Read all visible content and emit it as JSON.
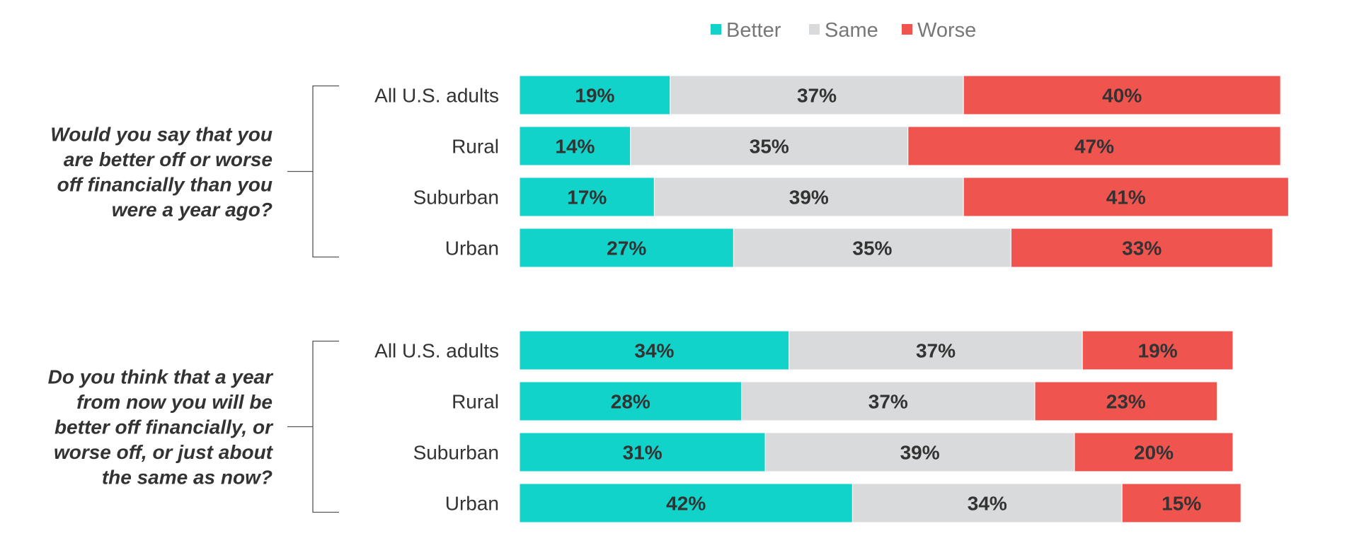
{
  "chart_data": {
    "type": "bar",
    "orientation": "horizontal",
    "stacked": true,
    "series_names": [
      "Better",
      "Same",
      "Worse"
    ],
    "colors": {
      "Better": "#11d3c9",
      "Same": "#d8dadb",
      "Worse": "#f0544f"
    },
    "legend_position": "top",
    "value_format": "percent",
    "groups": [
      {
        "question": "Would you say that you are better off or worse off financially than you were a year ago?",
        "question_lines": [
          "Would you say that you",
          "are better off or worse",
          "off financially than you",
          "were a year ago?"
        ],
        "rows": [
          {
            "label": "All U.S. adults",
            "values": [
              19,
              37,
              40
            ]
          },
          {
            "label": "Rural",
            "values": [
              14,
              35,
              47
            ]
          },
          {
            "label": "Suburban",
            "values": [
              17,
              39,
              41
            ]
          },
          {
            "label": "Urban",
            "values": [
              27,
              35,
              33
            ]
          }
        ]
      },
      {
        "question": "Do you think that a year from now you will be better off financially, or worse off, or just about the same as now?",
        "question_lines": [
          "Do you think that a year",
          "from now you will be",
          "better off financially, or",
          "worse off, or just about",
          "the same as now?"
        ],
        "rows": [
          {
            "label": "All U.S. adults",
            "values": [
              34,
              37,
              19
            ]
          },
          {
            "label": "Rural",
            "values": [
              28,
              37,
              23
            ]
          },
          {
            "label": "Suburban",
            "values": [
              31,
              39,
              20
            ]
          },
          {
            "label": "Urban",
            "values": [
              42,
              34,
              15
            ]
          }
        ]
      }
    ]
  }
}
